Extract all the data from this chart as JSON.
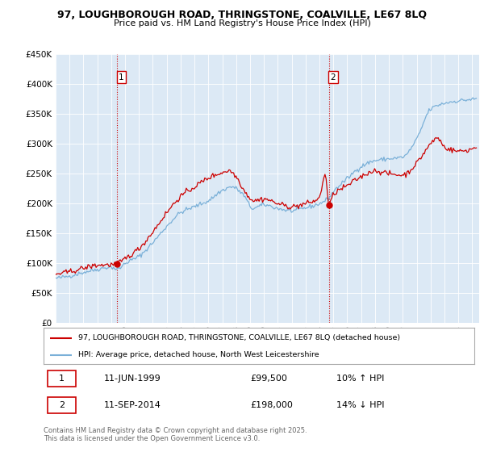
{
  "title_line1": "97, LOUGHBOROUGH ROAD, THRINGSTONE, COALVILLE, LE67 8LQ",
  "title_line2": "Price paid vs. HM Land Registry's House Price Index (HPI)",
  "legend_label1": "97, LOUGHBOROUGH ROAD, THRINGSTONE, COALVILLE, LE67 8LQ (detached house)",
  "legend_label2": "HPI: Average price, detached house, North West Leicestershire",
  "transaction1_date": "11-JUN-1999",
  "transaction1_price": "£99,500",
  "transaction1_hpi": "10% ↑ HPI",
  "transaction2_date": "11-SEP-2014",
  "transaction2_price": "£198,000",
  "transaction2_hpi": "14% ↓ HPI",
  "copyright": "Contains HM Land Registry data © Crown copyright and database right 2025.\nThis data is licensed under the Open Government Licence v3.0.",
  "vline1_year": 1999.44,
  "vline2_year": 2014.69,
  "ylim_min": 0,
  "ylim_max": 450000,
  "hpi_color": "#7ab0d8",
  "price_color": "#cc0000",
  "vline_color": "#cc0000",
  "bg_color": "#ffffff",
  "plot_bg_color": "#dce9f5",
  "grid_color": "#ffffff"
}
